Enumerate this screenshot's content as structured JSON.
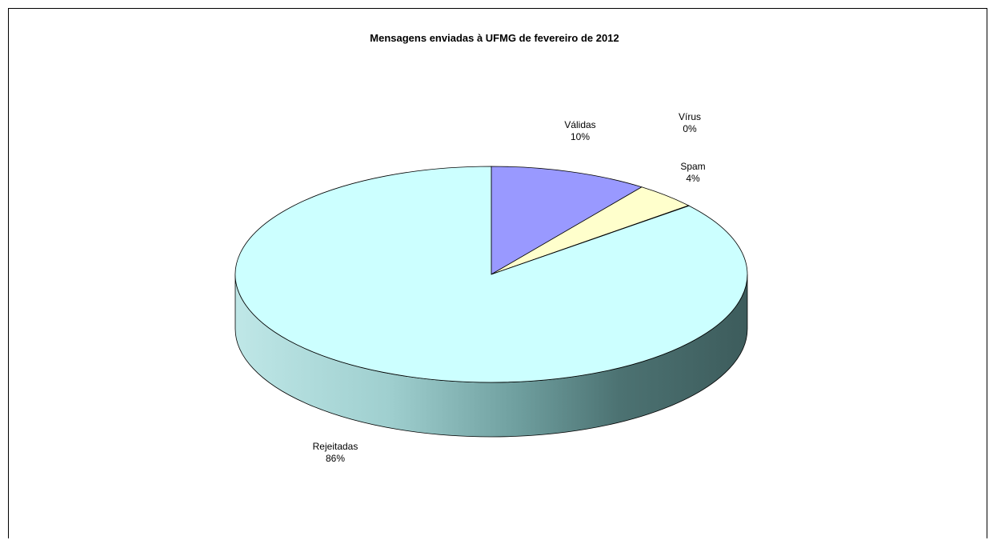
{
  "chart_data": {
    "type": "pie",
    "title": "Mensagens enviadas à UFMG de fevereiro de 2012",
    "three_d": true,
    "slices": [
      {
        "label": "Válidas",
        "percent_label": "10%",
        "value": 10,
        "color": "#9999ff"
      },
      {
        "label": "Spam",
        "percent_label": "4%",
        "value": 4,
        "color": "#ffffcc"
      },
      {
        "label": "Vírus",
        "percent_label": "0%",
        "value": 0.05,
        "color": "#cc99ff"
      },
      {
        "label": "Rejeitadas",
        "percent_label": "86%",
        "value": 86,
        "color": "#ccffff"
      }
    ]
  }
}
